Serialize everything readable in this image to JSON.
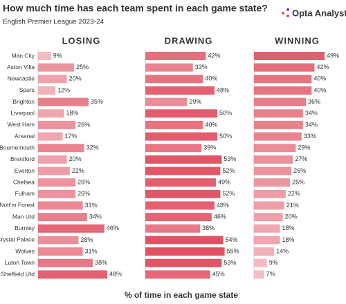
{
  "brand": "Opta Analyst",
  "chart_data": {
    "type": "bar",
    "orientation": "horizontal",
    "title": "How much time has each team spent in each game state?",
    "subtitle": "English Premier League 2023-24",
    "xlabel": "% of time in each game state",
    "xlim": [
      0,
      60
    ],
    "color_low": "#f6cfd3",
    "color_high": "#df4558",
    "categories": [
      "Man City",
      "Aston Villa",
      "Newcastle",
      "Spurs",
      "Brighton",
      "Liverpool",
      "West Ham",
      "Arsenal",
      "Bournemouth",
      "Brentford",
      "Everton",
      "Chelsea",
      "Fulham",
      "Nott'm Forest",
      "Man Utd",
      "Burnley",
      "Crystal Palace",
      "Wolves",
      "Luton Town",
      "Sheffield Utd"
    ],
    "series": [
      {
        "name": "LOSING",
        "values": [
          9,
          25,
          20,
          12,
          35,
          18,
          26,
          17,
          32,
          20,
          22,
          26,
          26,
          31,
          34,
          46,
          28,
          31,
          38,
          48
        ],
        "value_labels": [
          "9%",
          "25%",
          "20%",
          "12%",
          "35%",
          "18%",
          "26%",
          "17%",
          "32%",
          "20%",
          "22%",
          "26%",
          "26%",
          "31%",
          "34%",
          "46%",
          "28%",
          "31%",
          "38%",
          "48%"
        ]
      },
      {
        "name": "DRAWING",
        "values": [
          42,
          33,
          40,
          48,
          29,
          50,
          40,
          50,
          39,
          53,
          52,
          49,
          52,
          48,
          46,
          38,
          54,
          55,
          53,
          45
        ],
        "value_labels": [
          "42%",
          "33%",
          "40%",
          "48%",
          "29%",
          "50%",
          "40%",
          "50%",
          "39%",
          "53%",
          "52%",
          "49%",
          "52%",
          "48%",
          "46%",
          "38%",
          "54%",
          "55%",
          "53%",
          "45%"
        ]
      },
      {
        "name": "WINNING",
        "values": [
          49,
          42,
          40,
          40,
          36,
          34,
          34,
          33,
          29,
          27,
          26,
          25,
          22,
          21,
          20,
          18,
          18,
          14,
          9,
          7
        ],
        "value_labels": [
          "49%",
          "42%",
          "40%",
          "40%",
          "36%",
          "34%",
          "34%",
          "33%",
          "29%",
          "27%",
          "26%",
          "25%",
          "22%",
          "21%",
          "20%",
          "18%",
          "18%",
          "14%",
          "9%",
          "7%"
        ]
      }
    ]
  }
}
